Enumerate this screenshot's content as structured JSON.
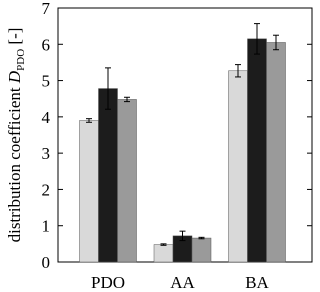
{
  "chart_data": {
    "type": "bar",
    "y_label": {
      "text": "distribution coefficient",
      "symbol": "D",
      "subscript": "PDO",
      "unit": "[-]"
    },
    "categories": [
      "PDO",
      "AA",
      "BA"
    ],
    "series": [
      {
        "color": "#d9d9d9",
        "values": [
          3.9,
          0.48,
          5.27
        ],
        "errors": [
          0.05,
          0.02,
          0.17
        ]
      },
      {
        "color": "#1c1c1c",
        "values": [
          4.78,
          0.72,
          6.15
        ],
        "errors": [
          0.57,
          0.13,
          0.42
        ]
      },
      {
        "color": "#9a9a9a",
        "values": [
          4.48,
          0.66,
          6.05
        ],
        "errors": [
          0.06,
          0.02,
          0.2
        ]
      }
    ],
    "ylim": [
      0,
      7
    ],
    "yticks": [
      0,
      1,
      2,
      3,
      4,
      5,
      6,
      7
    ],
    "grid": false
  }
}
